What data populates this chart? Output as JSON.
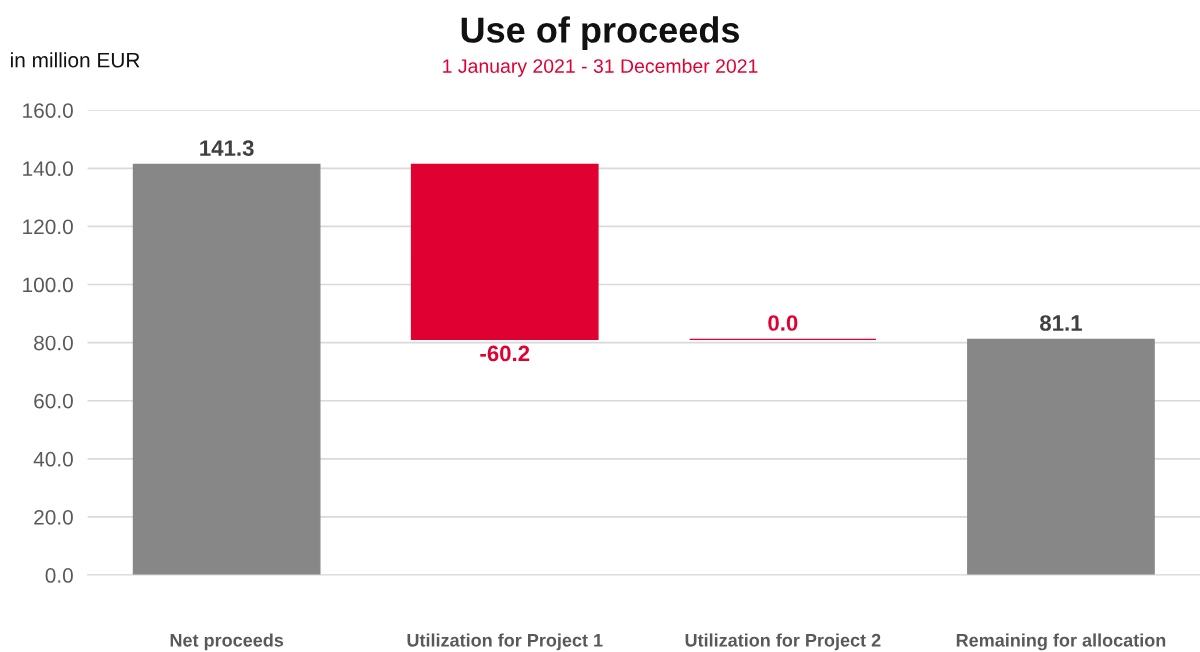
{
  "chart_data": {
    "type": "bar",
    "title": "Use of proceeds",
    "subtitle": "1 January 2021 - 31 December 2021",
    "ylabel": "in million EUR",
    "categories": [
      "Net proceeds",
      "Utilization for Project 1",
      "Utilization for Project 2",
      "Remaining for allocation"
    ],
    "values": [
      141.3,
      -60.2,
      0.0,
      81.1
    ],
    "base": [
      0,
      141.3,
      81.1,
      0
    ],
    "colors": [
      "#878787",
      "#e10032",
      "#e10032",
      "#878787"
    ],
    "value_labels": [
      "141.3",
      "-60.2",
      "0.0",
      "81.1"
    ],
    "ylim": [
      0,
      160
    ],
    "yticks": [
      {
        "value": 0,
        "label": "0.0"
      },
      {
        "value": 20,
        "label": "20.0"
      },
      {
        "value": 40,
        "label": "40.0"
      },
      {
        "value": 60,
        "label": "60.0"
      },
      {
        "value": 80,
        "label": "80.0"
      },
      {
        "value": 100,
        "label": "100.0"
      },
      {
        "value": 120,
        "label": "120.0"
      },
      {
        "value": 140,
        "label": "140.0"
      },
      {
        "value": 160,
        "label": "160.0"
      }
    ],
    "grid": "y",
    "legend": false
  }
}
